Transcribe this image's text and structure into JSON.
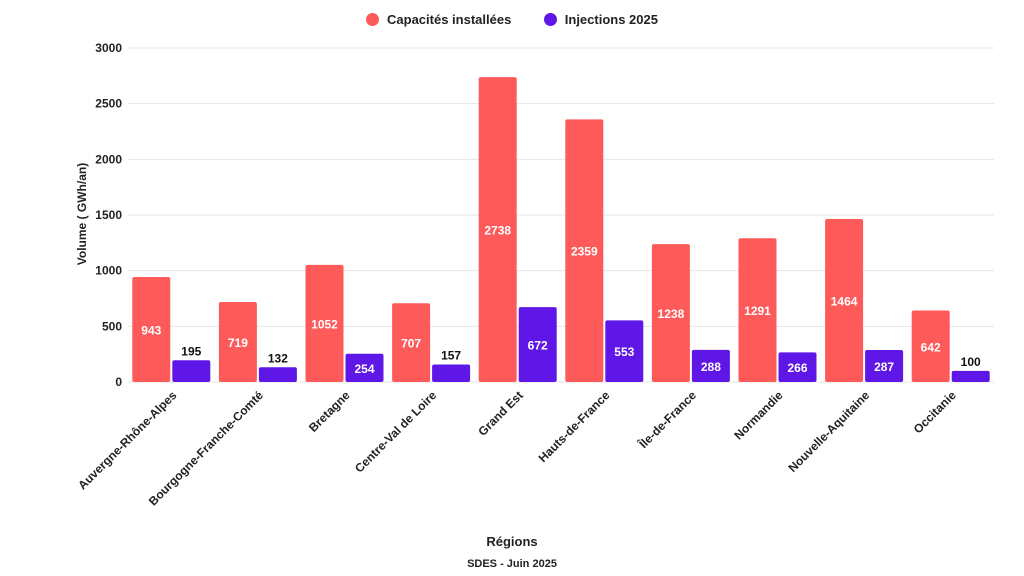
{
  "chart_data": {
    "type": "bar",
    "categories": [
      "Auvergne-Rhône-Alpes",
      "Bourgogne-Franche-Comté",
      "Bretagne",
      "Centre-Val de Loire",
      "Grand Est",
      "Hauts-de-France",
      "Île-de-France",
      "Normandie",
      "Nouvelle-Aquitaine",
      "Occitanie"
    ],
    "series": [
      {
        "name": "Capacités installées",
        "color": "#ff5a5a",
        "values": [
          943,
          719,
          1052,
          707,
          2738,
          2359,
          1238,
          1291,
          1464,
          642
        ]
      },
      {
        "name": "Injections 2025",
        "color": "#5f17e8",
        "values": [
          195,
          132,
          254,
          157,
          672,
          553,
          288,
          266,
          287,
          100
        ]
      }
    ],
    "xlabel": "Régions",
    "ylabel": "Volume ( GWh/an)",
    "ylim": [
      0,
      3000
    ],
    "yticks": [
      "0",
      "500",
      "1000",
      "1500",
      "2000",
      "2500",
      "3000"
    ],
    "grid": true,
    "legend_position": "top-center"
  },
  "source": "SDES - Juin 2025"
}
